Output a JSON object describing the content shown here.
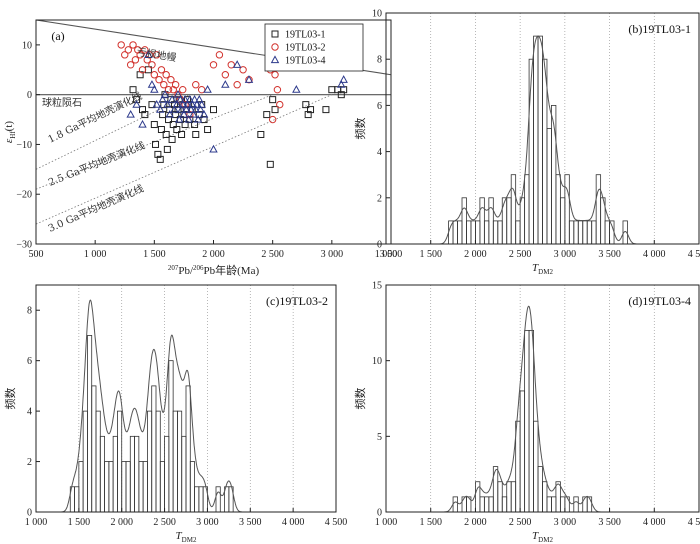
{
  "chart_data": [
    {
      "id": "a",
      "type": "scatter",
      "panel_label": "(a)",
      "xlabel_sup1": "207",
      "xlabel_mid": "Pb/",
      "xlabel_sup2": "206",
      "xlabel_tail": "Pb年龄(Ma)",
      "ylabel_main": "ε",
      "ylabel_sub": "Hf",
      "ylabel_tail": "(t)",
      "xlim": [
        500,
        3500
      ],
      "ylim": [
        -30,
        15
      ],
      "xticks": [
        500,
        1000,
        1500,
        2000,
        2500,
        3000,
        3500
      ],
      "xtick_labels": [
        "500",
        "1 000",
        "1 500",
        "2 000",
        "2 500",
        "3 000",
        "3 500"
      ],
      "yticks": [
        -30,
        -20,
        -10,
        0,
        10
      ],
      "ytick_labels": [
        "−30",
        "−20",
        "−10",
        "0",
        "10"
      ],
      "annotations": {
        "depleted_mantle": "亏损地幔",
        "chur": "球粒陨石",
        "crust_18": "1.8 Ga平均地壳演化线",
        "crust_25": "2.5 Ga平均地壳演化线",
        "crust_30": "3.0 Ga平均地壳演化线"
      },
      "reference_lines": [
        {
          "x": [
            500,
            3500
          ],
          "y": [
            15,
            4
          ]
        },
        {
          "x": [
            500,
            3500
          ],
          "y": [
            0,
            0
          ]
        },
        {
          "x": [
            500,
            1800
          ],
          "y": [
            -15,
            0
          ]
        },
        {
          "x": [
            500,
            2500
          ],
          "y": [
            -19,
            0
          ]
        },
        {
          "x": [
            500,
            3000
          ],
          "y": [
            -26,
            0
          ]
        }
      ],
      "series": [
        {
          "name": "19TL03-1",
          "marker": "square",
          "color": "#222222",
          "points": [
            [
              1320,
              1
            ],
            [
              1350,
              -1
            ],
            [
              1380,
              4
            ],
            [
              1400,
              -3
            ],
            [
              1420,
              -4
            ],
            [
              1450,
              5
            ],
            [
              1480,
              -2
            ],
            [
              1500,
              -6
            ],
            [
              1510,
              -10
            ],
            [
              1530,
              -12
            ],
            [
              1550,
              -13
            ],
            [
              1560,
              -7
            ],
            [
              1570,
              -4
            ],
            [
              1580,
              -2
            ],
            [
              1590,
              0
            ],
            [
              1600,
              -8
            ],
            [
              1610,
              -11
            ],
            [
              1620,
              -5
            ],
            [
              1630,
              -3
            ],
            [
              1640,
              -1
            ],
            [
              1650,
              -9
            ],
            [
              1660,
              -6
            ],
            [
              1670,
              -2
            ],
            [
              1680,
              -4
            ],
            [
              1690,
              -7
            ],
            [
              1700,
              -3
            ],
            [
              1710,
              -1
            ],
            [
              1720,
              -5
            ],
            [
              1730,
              -8
            ],
            [
              1740,
              -2
            ],
            [
              1750,
              -4
            ],
            [
              1760,
              -6
            ],
            [
              1770,
              -3
            ],
            [
              1780,
              -1
            ],
            [
              1790,
              -2
            ],
            [
              1800,
              -5
            ],
            [
              1820,
              -3
            ],
            [
              1840,
              -6
            ],
            [
              1850,
              -8
            ],
            [
              1880,
              -4
            ],
            [
              1900,
              -2
            ],
            [
              1920,
              -5
            ],
            [
              1950,
              -7
            ],
            [
              2000,
              -3
            ],
            [
              2400,
              -8
            ],
            [
              2450,
              -4
            ],
            [
              2480,
              -14
            ],
            [
              2500,
              -1
            ],
            [
              2520,
              -3
            ],
            [
              2780,
              -2
            ],
            [
              2800,
              -4
            ],
            [
              2820,
              -3
            ],
            [
              2950,
              -3
            ],
            [
              3000,
              1
            ],
            [
              3050,
              1
            ],
            [
              3080,
              0
            ],
            [
              3100,
              1
            ]
          ]
        },
        {
          "name": "19TL03-2",
          "marker": "circle",
          "color": "#d2322d",
          "points": [
            [
              1220,
              10
            ],
            [
              1250,
              8
            ],
            [
              1280,
              9
            ],
            [
              1300,
              6
            ],
            [
              1320,
              10
            ],
            [
              1340,
              7
            ],
            [
              1360,
              9
            ],
            [
              1380,
              8
            ],
            [
              1400,
              5
            ],
            [
              1420,
              9
            ],
            [
              1440,
              7
            ],
            [
              1460,
              8
            ],
            [
              1480,
              6
            ],
            [
              1500,
              4
            ],
            [
              1520,
              8
            ],
            [
              1540,
              3
            ],
            [
              1560,
              5
            ],
            [
              1580,
              2
            ],
            [
              1600,
              4
            ],
            [
              1620,
              1
            ],
            [
              1640,
              3
            ],
            [
              1660,
              1
            ],
            [
              1680,
              2
            ],
            [
              1700,
              0
            ],
            [
              1720,
              -1
            ],
            [
              1740,
              1
            ],
            [
              1760,
              -2
            ],
            [
              1800,
              -4
            ],
            [
              1850,
              2
            ],
            [
              1900,
              1
            ],
            [
              2000,
              6
            ],
            [
              2050,
              8
            ],
            [
              2100,
              4
            ],
            [
              2150,
              6
            ],
            [
              2200,
              2
            ],
            [
              2250,
              5
            ],
            [
              2300,
              3
            ],
            [
              2480,
              5
            ],
            [
              2500,
              -5
            ],
            [
              2520,
              4
            ],
            [
              2540,
              1
            ],
            [
              2560,
              -2
            ]
          ]
        },
        {
          "name": "19TL03-4",
          "marker": "triangle",
          "color": "#2d3a8c",
          "points": [
            [
              1300,
              -4
            ],
            [
              1350,
              -2
            ],
            [
              1400,
              -6
            ],
            [
              1450,
              8
            ],
            [
              1480,
              2
            ],
            [
              1500,
              1
            ],
            [
              1520,
              -2
            ],
            [
              1550,
              -3
            ],
            [
              1570,
              -1
            ],
            [
              1590,
              0
            ],
            [
              1610,
              -2
            ],
            [
              1630,
              -4
            ],
            [
              1650,
              -1
            ],
            [
              1670,
              -3
            ],
            [
              1690,
              -2
            ],
            [
              1700,
              0
            ],
            [
              1710,
              -5
            ],
            [
              1720,
              -1
            ],
            [
              1730,
              -3
            ],
            [
              1740,
              -2
            ],
            [
              1750,
              -4
            ],
            [
              1760,
              -1
            ],
            [
              1770,
              -3
            ],
            [
              1780,
              -2
            ],
            [
              1790,
              -5
            ],
            [
              1800,
              -1
            ],
            [
              1810,
              -3
            ],
            [
              1820,
              -2
            ],
            [
              1830,
              -4
            ],
            [
              1840,
              -1
            ],
            [
              1850,
              -3
            ],
            [
              1860,
              -2
            ],
            [
              1870,
              -5
            ],
            [
              1880,
              -1
            ],
            [
              1890,
              -3
            ],
            [
              1900,
              -2
            ],
            [
              1920,
              -4
            ],
            [
              1950,
              1
            ],
            [
              2000,
              -11
            ],
            [
              2100,
              2
            ],
            [
              2200,
              6
            ],
            [
              2300,
              3
            ],
            [
              2500,
              8
            ],
            [
              2700,
              1
            ],
            [
              3080,
              2
            ],
            [
              3100,
              3
            ]
          ]
        }
      ]
    },
    {
      "id": "b",
      "type": "histogram",
      "panel_label": "(b)19TL03-1",
      "xlabel_main": "T",
      "xlabel_sub": "DM2",
      "ylabel": "频数",
      "xlim": [
        1000,
        4500
      ],
      "ylim": [
        0,
        10
      ],
      "xticks": [
        1000,
        1500,
        2000,
        2500,
        3000,
        3500,
        4000,
        4500
      ],
      "xtick_labels": [
        "1 000",
        "1 500",
        "2 000",
        "2 500",
        "3 000",
        "3 500",
        "4 000",
        "4 500"
      ],
      "yticks": [
        0,
        2,
        4,
        6,
        8,
        10
      ],
      "ytick_labels": [
        "0",
        "2",
        "4",
        "6",
        "8",
        "10"
      ],
      "bin_start": 1700,
      "bin_width": 50,
      "counts": [
        1,
        1,
        1,
        2,
        1,
        1,
        1,
        2,
        1,
        2,
        1,
        1,
        2,
        2,
        3,
        1,
        2,
        3,
        8,
        9,
        9,
        8,
        5,
        6,
        3,
        2,
        3,
        1,
        1,
        1,
        1,
        1,
        1,
        3,
        2,
        1,
        1,
        0,
        0,
        1
      ],
      "density_scale": 9.0
    },
    {
      "id": "c",
      "type": "histogram",
      "panel_label": "(c)19TL03-2",
      "xlabel_main": "T",
      "xlabel_sub": "DM2",
      "ylabel": "频数",
      "xlim": [
        1000,
        4500
      ],
      "ylim": [
        0,
        9
      ],
      "xticks": [
        1000,
        1500,
        2000,
        2500,
        3000,
        3500,
        4000,
        4500
      ],
      "xtick_labels": [
        "1 000",
        "1 500",
        "2 000",
        "2 500",
        "3 000",
        "3 500",
        "4 000",
        "4 500"
      ],
      "yticks": [
        0,
        2,
        4,
        6,
        8
      ],
      "ytick_labels": [
        "0",
        "2",
        "4",
        "6",
        "8"
      ],
      "bin_start": 1400,
      "bin_width": 50,
      "counts": [
        1,
        1,
        2,
        4,
        7,
        5,
        4,
        3,
        2,
        2,
        3,
        4,
        2,
        2,
        3,
        3,
        2,
        2,
        4,
        5,
        4,
        2,
        3,
        6,
        4,
        4,
        3,
        5,
        2,
        1,
        1,
        1,
        0,
        0,
        1,
        0,
        1,
        1
      ],
      "density_scale": 8.4
    },
    {
      "id": "d",
      "type": "histogram",
      "panel_label": "(d)19TL03-4",
      "xlabel_main": "T",
      "xlabel_sub": "DM2",
      "ylabel": "频数",
      "xlim": [
        1000,
        4500
      ],
      "ylim": [
        0,
        15
      ],
      "xticks": [
        1000,
        1500,
        2000,
        2500,
        3000,
        3500,
        4000,
        4500
      ],
      "xtick_labels": [
        "1 000",
        "1 500",
        "2 000",
        "2 500",
        "3 000",
        "3 500",
        "4 000",
        "4 500"
      ],
      "yticks": [
        0,
        5,
        10,
        15
      ],
      "ytick_labels": [
        "0",
        "5",
        "10",
        "15"
      ],
      "bin_start": 1750,
      "bin_width": 50,
      "counts": [
        1,
        0,
        1,
        1,
        0,
        2,
        1,
        1,
        1,
        3,
        2,
        1,
        2,
        2,
        6,
        8,
        12,
        12,
        6,
        3,
        2,
        1,
        1,
        2,
        1,
        1,
        0,
        1,
        0,
        1,
        1,
        0
      ],
      "density_scale": 13.6
    }
  ]
}
